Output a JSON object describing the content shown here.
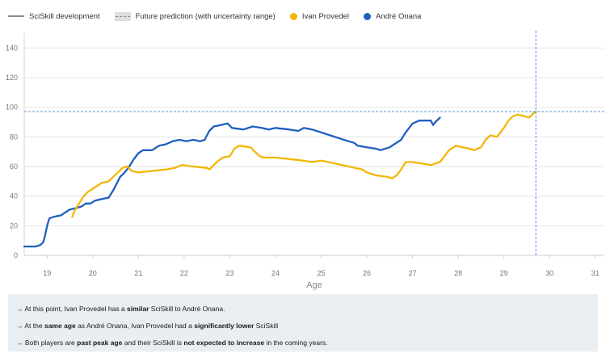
{
  "legend": [
    {
      "label": "SciSkill development",
      "kind": "line",
      "color": "#8a8a8a"
    },
    {
      "label": "Future prediction (with uncertainty range)",
      "kind": "dash",
      "color": "#8a8a8a"
    },
    {
      "label": "Ivan Provedel",
      "kind": "dot",
      "color": "#f2b705"
    },
    {
      "label": "André Onana",
      "kind": "dot",
      "color": "#1f5fbf"
    }
  ],
  "colors": {
    "provedel": "#f2b705",
    "onana": "#1f5fbf",
    "grid": "#e6e6e6",
    "reference": "#5b8fd6",
    "notes_bg": "#e9eef3"
  },
  "chart_data": {
    "type": "line",
    "xlabel": "Age",
    "ylabel": "",
    "xlim": [
      18.5,
      31.2
    ],
    "ylim": [
      0,
      150
    ],
    "x_ticks": [
      19,
      20,
      21,
      22,
      23,
      24,
      25,
      26,
      27,
      28,
      29,
      30,
      31
    ],
    "y_ticks": [
      0,
      20,
      40,
      60,
      80,
      100,
      120,
      140
    ],
    "reference": {
      "age": 29.7,
      "value": 97
    },
    "series": [
      {
        "name": "André Onana",
        "color": "#1f5fbf",
        "points": [
          [
            18.5,
            6
          ],
          [
            18.75,
            6
          ],
          [
            18.85,
            7
          ],
          [
            18.92,
            9
          ],
          [
            18.96,
            14
          ],
          [
            19.0,
            20
          ],
          [
            19.05,
            25
          ],
          [
            19.15,
            26
          ],
          [
            19.3,
            27
          ],
          [
            19.4,
            29
          ],
          [
            19.5,
            31
          ],
          [
            19.65,
            32
          ],
          [
            19.75,
            33
          ],
          [
            19.85,
            35
          ],
          [
            19.95,
            35
          ],
          [
            20.05,
            37
          ],
          [
            20.2,
            38
          ],
          [
            20.35,
            39
          ],
          [
            20.45,
            44
          ],
          [
            20.5,
            47
          ],
          [
            20.6,
            53
          ],
          [
            20.7,
            56
          ],
          [
            20.8,
            60
          ],
          [
            20.9,
            65
          ],
          [
            21.0,
            69
          ],
          [
            21.1,
            71
          ],
          [
            21.3,
            71
          ],
          [
            21.45,
            74
          ],
          [
            21.6,
            75
          ],
          [
            21.75,
            77
          ],
          [
            21.9,
            78
          ],
          [
            22.05,
            77
          ],
          [
            22.2,
            78
          ],
          [
            22.35,
            77
          ],
          [
            22.45,
            78
          ],
          [
            22.55,
            84
          ],
          [
            22.65,
            87
          ],
          [
            22.8,
            88
          ],
          [
            22.95,
            89
          ],
          [
            23.05,
            86
          ],
          [
            23.3,
            85
          ],
          [
            23.5,
            87
          ],
          [
            23.7,
            86
          ],
          [
            23.85,
            85
          ],
          [
            24.0,
            86
          ],
          [
            24.3,
            85
          ],
          [
            24.5,
            84
          ],
          [
            24.62,
            86
          ],
          [
            24.8,
            85
          ],
          [
            25.0,
            83
          ],
          [
            25.2,
            81
          ],
          [
            25.4,
            79
          ],
          [
            25.6,
            77
          ],
          [
            25.72,
            76
          ],
          [
            25.8,
            74
          ],
          [
            26.0,
            73
          ],
          [
            26.2,
            72
          ],
          [
            26.3,
            71
          ],
          [
            26.5,
            73
          ],
          [
            26.6,
            75
          ],
          [
            26.75,
            78
          ],
          [
            26.85,
            83
          ],
          [
            27.0,
            89
          ],
          [
            27.15,
            91
          ],
          [
            27.4,
            91
          ],
          [
            27.45,
            88
          ],
          [
            27.5,
            90
          ],
          [
            27.6,
            93
          ]
        ]
      },
      {
        "name": "Ivan Provedel",
        "color": "#f2b705",
        "points": [
          [
            19.55,
            26
          ],
          [
            19.6,
            30
          ],
          [
            19.7,
            35
          ],
          [
            19.8,
            40
          ],
          [
            19.9,
            43
          ],
          [
            20.0,
            45
          ],
          [
            20.1,
            47
          ],
          [
            20.2,
            49
          ],
          [
            20.35,
            50
          ],
          [
            20.45,
            53
          ],
          [
            20.55,
            56
          ],
          [
            20.65,
            59
          ],
          [
            20.75,
            60
          ],
          [
            20.85,
            57
          ],
          [
            21.0,
            56
          ],
          [
            21.3,
            57
          ],
          [
            21.6,
            58
          ],
          [
            21.8,
            59
          ],
          [
            21.95,
            61
          ],
          [
            22.2,
            60
          ],
          [
            22.5,
            59
          ],
          [
            22.55,
            58
          ],
          [
            22.65,
            61
          ],
          [
            22.75,
            64
          ],
          [
            22.85,
            66
          ],
          [
            23.0,
            67
          ],
          [
            23.1,
            72
          ],
          [
            23.2,
            74
          ],
          [
            23.45,
            73
          ],
          [
            23.55,
            70
          ],
          [
            23.65,
            67
          ],
          [
            23.75,
            66
          ],
          [
            24.0,
            66
          ],
          [
            24.3,
            65
          ],
          [
            24.6,
            64
          ],
          [
            24.8,
            63
          ],
          [
            25.0,
            64
          ],
          [
            25.3,
            62
          ],
          [
            25.6,
            60
          ],
          [
            25.9,
            58
          ],
          [
            26.0,
            56
          ],
          [
            26.2,
            54
          ],
          [
            26.45,
            53
          ],
          [
            26.55,
            52
          ],
          [
            26.65,
            54
          ],
          [
            26.75,
            58
          ],
          [
            26.85,
            63
          ],
          [
            27.0,
            63
          ],
          [
            27.2,
            62
          ],
          [
            27.4,
            61
          ],
          [
            27.5,
            62
          ],
          [
            27.6,
            63
          ],
          [
            27.7,
            67
          ],
          [
            27.8,
            71
          ],
          [
            27.95,
            74
          ],
          [
            28.1,
            73
          ],
          [
            28.25,
            72
          ],
          [
            28.35,
            71
          ],
          [
            28.5,
            73
          ],
          [
            28.6,
            78
          ],
          [
            28.7,
            81
          ],
          [
            28.85,
            80
          ],
          [
            29.0,
            86
          ],
          [
            29.1,
            91
          ],
          [
            29.2,
            94
          ],
          [
            29.3,
            95
          ],
          [
            29.45,
            94
          ],
          [
            29.55,
            93
          ],
          [
            29.65,
            96
          ],
          [
            29.7,
            97
          ]
        ]
      }
    ]
  },
  "notes": [
    [
      {
        "t": "→ At this point, Ivan Provedel has a ",
        "b": false
      },
      {
        "t": "similar",
        "b": true
      },
      {
        "t": " SciSkill to André Onana.",
        "b": false
      }
    ],
    [
      {
        "t": "→ At the ",
        "b": false
      },
      {
        "t": "same age",
        "b": true
      },
      {
        "t": " as André Onana, Ivan Provedel had a ",
        "b": false
      },
      {
        "t": "significantly lower",
        "b": true
      },
      {
        "t": " SciSkill",
        "b": false
      }
    ],
    [
      {
        "t": "→ Both players are ",
        "b": false
      },
      {
        "t": "past peak age",
        "b": true
      },
      {
        "t": " and their SciSkill is ",
        "b": false
      },
      {
        "t": "not expected to increase",
        "b": true
      },
      {
        "t": " in the coming years.",
        "b": false
      }
    ]
  ]
}
